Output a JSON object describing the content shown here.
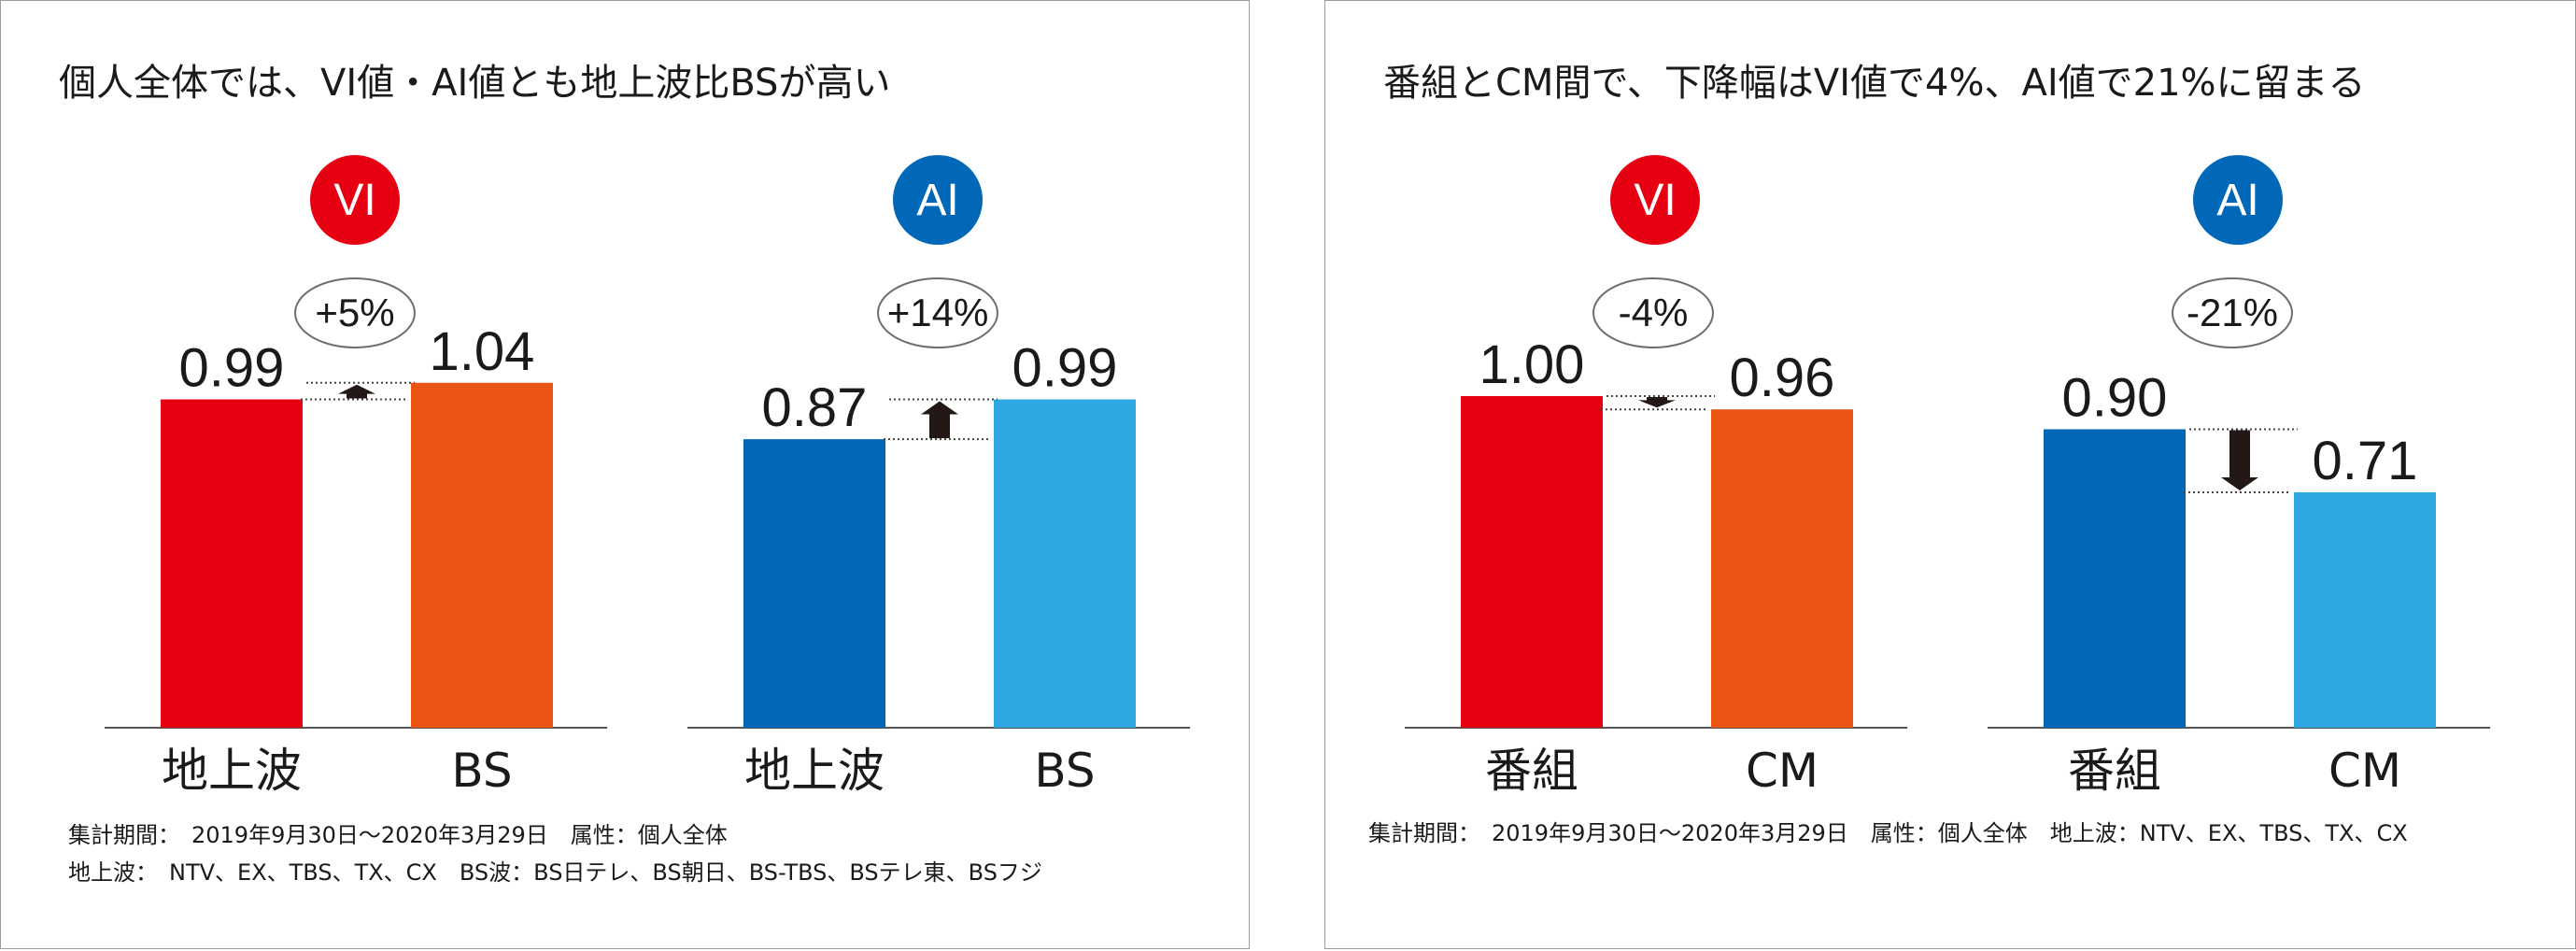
{
  "left_panel": {
    "title": "個人全体では、VI値・AI値とも地上波比BSが高い",
    "footnote_line1": "集計期間：　2019年9月30日～2020年3月29日　属性：個人全体",
    "footnote_line2": "地上波：　NTV、EX、TBS、TX、CX　BS波：BS日テレ、BS朝日、BS-TBS、BSテレ東、BSフジ"
  },
  "right_panel": {
    "title": "番組とCM間で、下降幅はVI値で4%、AI値で21%に留まる",
    "footnote_line1": "集計期間：　2019年9月30日～2020年3月29日　属性：個人全体　地上波：NTV、EX、TBS、TX、CX"
  },
  "chart_data": [
    {
      "type": "bar",
      "badge": "VI",
      "badge_color": "#e60012",
      "categories": [
        "地上波",
        "BS"
      ],
      "values": [
        0.99,
        1.04
      ],
      "value_labels": [
        "0.99",
        "1.04"
      ],
      "bar_colors": [
        "#e60012",
        "#ea5514"
      ],
      "change_label": "+5%",
      "direction": "up"
    },
    {
      "type": "bar",
      "badge": "AI",
      "badge_color": "#0068b7",
      "categories": [
        "地上波",
        "BS"
      ],
      "values": [
        0.87,
        0.99
      ],
      "value_labels": [
        "0.87",
        "0.99"
      ],
      "bar_colors": [
        "#0068b7",
        "#2ea7e0"
      ],
      "change_label": "+14%",
      "direction": "up"
    },
    {
      "type": "bar",
      "badge": "VI",
      "badge_color": "#e60012",
      "categories": [
        "番組",
        "CM"
      ],
      "values": [
        1.0,
        0.96
      ],
      "value_labels": [
        "1.00",
        "0.96"
      ],
      "bar_colors": [
        "#e60012",
        "#ea5514"
      ],
      "change_label": "-4%",
      "direction": "down"
    },
    {
      "type": "bar",
      "badge": "AI",
      "badge_color": "#0068b7",
      "categories": [
        "番組",
        "CM"
      ],
      "values": [
        0.9,
        0.71
      ],
      "value_labels": [
        "0.90",
        "0.71"
      ],
      "bar_colors": [
        "#0068b7",
        "#2ea7e0"
      ],
      "change_label": "-21%",
      "direction": "down"
    }
  ]
}
